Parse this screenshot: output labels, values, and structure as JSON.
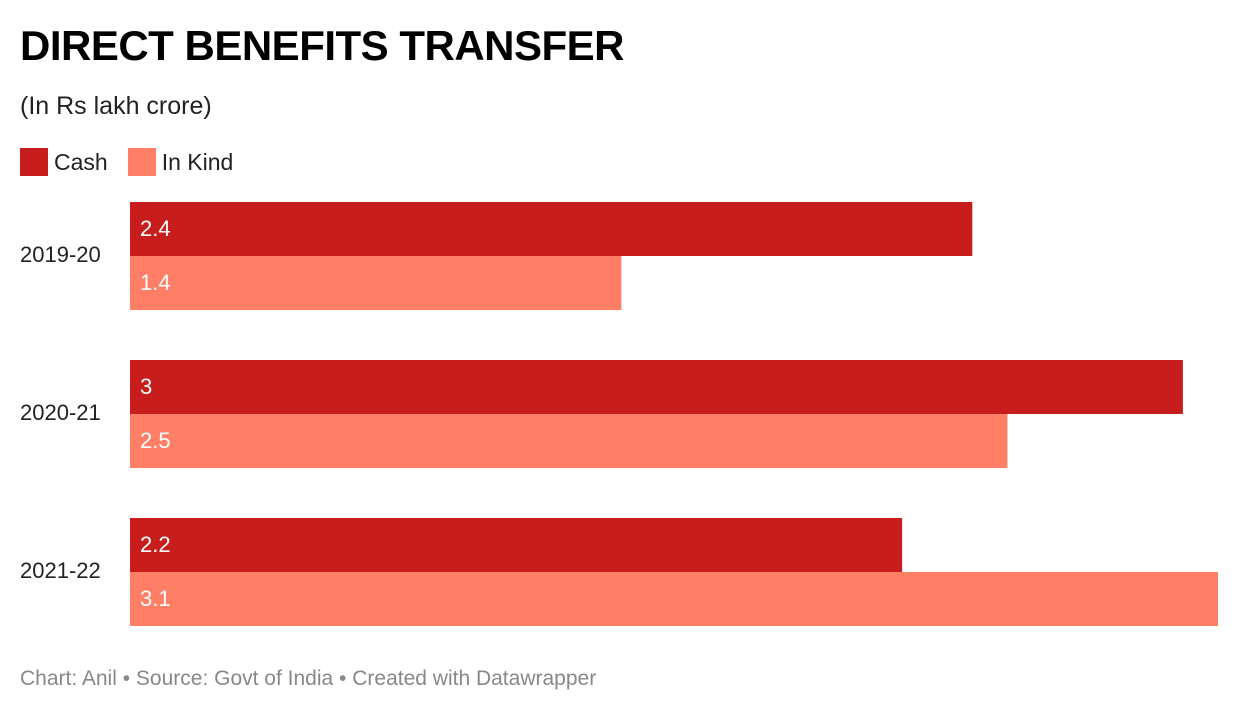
{
  "colors": {
    "cash": "#c71e1d",
    "in_kind": "#ff7f66",
    "bar_label": "#ffffff",
    "text": "#222222",
    "footer": "#888888"
  },
  "chart_data": {
    "type": "bar",
    "orientation": "horizontal",
    "title": "DIRECT BENEFITS TRANSFER",
    "subtitle": "(In Rs lakh crore)",
    "categories": [
      "2019-20",
      "2020-21",
      "2021-22"
    ],
    "series": [
      {
        "name": "Cash",
        "values": [
          2.4,
          3,
          2.2
        ]
      },
      {
        "name": "In Kind",
        "values": [
          1.4,
          2.5,
          3.1
        ]
      }
    ],
    "value_labels": [
      [
        "2.4",
        "1.4"
      ],
      [
        "3",
        "2.5"
      ],
      [
        "2.2",
        "3.1"
      ]
    ],
    "xlim": [
      0,
      3.1
    ],
    "grid": false,
    "legend_position": "top-left"
  },
  "footer": {
    "credit": "Chart: Anil",
    "separator1": " • ",
    "source": "Source: Govt of India",
    "separator2": " • ",
    "tool": "Created with Datawrapper"
  }
}
